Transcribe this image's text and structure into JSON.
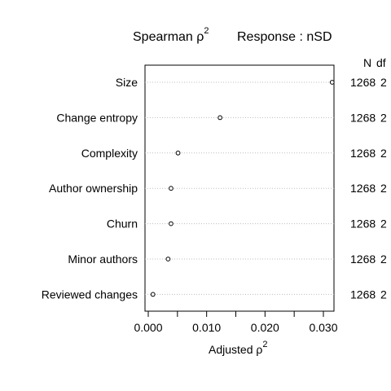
{
  "chart_data": {
    "type": "scatter",
    "title": {
      "prefix": "Spearman ",
      "rho": "ρ",
      "exp": "2",
      "response": "Response : nSD"
    },
    "xlabel": {
      "text": "Adjusted ",
      "rho": "ρ",
      "exp": "2"
    },
    "xlim": [
      0,
      0.032
    ],
    "xticks": [
      0.0,
      0.01,
      0.02,
      0.03
    ],
    "xtick_labels": [
      "0.000",
      "0.010",
      "0.020",
      "0.030"
    ],
    "right_headers": {
      "n": "N",
      "df": "df"
    },
    "categories": [
      "Size",
      "Change entropy",
      "Complexity",
      "Author ownership",
      "Churn",
      "Minor authors",
      "Reviewed changes"
    ],
    "values": [
      0.0315,
      0.0123,
      0.0051,
      0.0039,
      0.0039,
      0.0034,
      0.0008
    ],
    "n": [
      "1268",
      "1268",
      "1268",
      "1268",
      "1268",
      "1268",
      "1268"
    ],
    "df": [
      "2",
      "2",
      "2",
      "2",
      "2",
      "2",
      "2"
    ],
    "grid": "dotted horizontal guide lines per row",
    "marker": "open circle"
  }
}
